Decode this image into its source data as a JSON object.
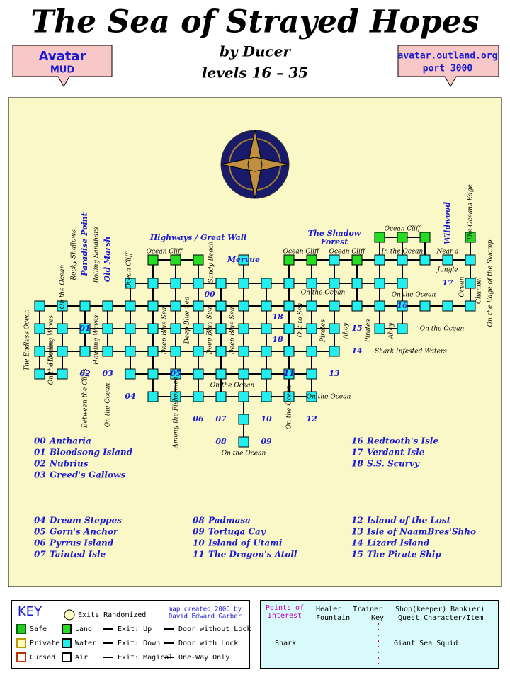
{
  "header": {
    "title": "The Sea of Strayed Hopes",
    "author": "by Ducer",
    "levels": "levels 16 – 35",
    "badge_left": [
      "Avatar",
      "MUD"
    ],
    "badge_right": [
      "avatar.outland.org",
      "port 3000"
    ]
  },
  "map": {
    "labels": [
      "Highways / Great Wall",
      "The Shadow",
      "Forest",
      "Mervue",
      "Paradise Point",
      "Old Marsh",
      "Wildwood",
      "Rocky Shallows",
      "Rolling Sandbars",
      "On the Ocean",
      "Ocean Cliff",
      "Ocean Cliff",
      "Sandy Beach",
      "Ocean Cliff",
      "Ocean Cliff",
      "Ocean Cliff",
      "In the Ocean",
      "Near a",
      "Jungle",
      "The Oceans Edge",
      "On the Ocean",
      "On the Ocean",
      "The Endless Ocean",
      "Howling Waves",
      "On the Ocean",
      "Howling Waves",
      "Deep Blue Sea",
      "Deep Blue Sea",
      "Deep Blue Sea",
      "Deep Blue Sea",
      "Out to Sea",
      "Pirates",
      "Ahoy",
      "Pirates",
      "Ahoy",
      "Shark Infested Waters",
      "On the Ocean",
      "On the Ocean",
      "On the Ocean",
      "On the Ocean",
      "On the Ocean",
      "Among the Fishermen",
      "Between the Cliffs",
      "On the Ocean",
      "Ocean",
      "Channel",
      "On the Edge of the Swamp"
    ],
    "numbers": [
      "00",
      "01",
      "02",
      "03",
      "04",
      "05",
      "06",
      "07",
      "08",
      "09",
      "10",
      "11",
      "12",
      "13",
      "14",
      "15",
      "16",
      "17",
      "18",
      "18"
    ]
  },
  "zones": [
    [
      "00",
      "Antharia"
    ],
    [
      "01",
      "Bloodsong Island"
    ],
    [
      "02",
      "Nubrius"
    ],
    [
      "03",
      "Greed's Gallows"
    ],
    [
      "04",
      "Dream Steppes"
    ],
    [
      "05",
      "Gorn's Anchor"
    ],
    [
      "06",
      "Pyrrus Island"
    ],
    [
      "07",
      "Tainted Isle"
    ],
    [
      "08",
      "Padmasa"
    ],
    [
      "09",
      "Tortuga Cay"
    ],
    [
      "10",
      "Island of Utami"
    ],
    [
      "11",
      "The Dragon's Atoll"
    ],
    [
      "12",
      "Island of the Lost"
    ],
    [
      "13",
      "Isle of NaamBres'Shho"
    ],
    [
      "14",
      "Lizard Island"
    ],
    [
      "15",
      "The Pirate Ship"
    ],
    [
      "16",
      "Redtooth's Isle"
    ],
    [
      "17",
      "Verdant Isle"
    ],
    [
      "18",
      "S.S. Scurvy"
    ]
  ],
  "key": {
    "title": "KEY",
    "exits_randomized": "Exits Randomized",
    "credit": [
      "map created 2006 by",
      "David Edward Garber"
    ],
    "items": [
      "Safe",
      "Private",
      "Cursed",
      "Land",
      "Water",
      "Air",
      "Exit: Up",
      "Exit: Down",
      "Exit: Magical",
      "Door without Lock",
      "Door with Lock",
      "One-Way Only"
    ]
  },
  "poi": {
    "title": [
      "Points of",
      "Interest"
    ],
    "items": [
      "Healer",
      "Trainer",
      "Shop(keeper)",
      "Bank(er)",
      "Fountain",
      "Key",
      "Quest Character/Item",
      "Shark",
      "Giant Sea Squid"
    ]
  }
}
